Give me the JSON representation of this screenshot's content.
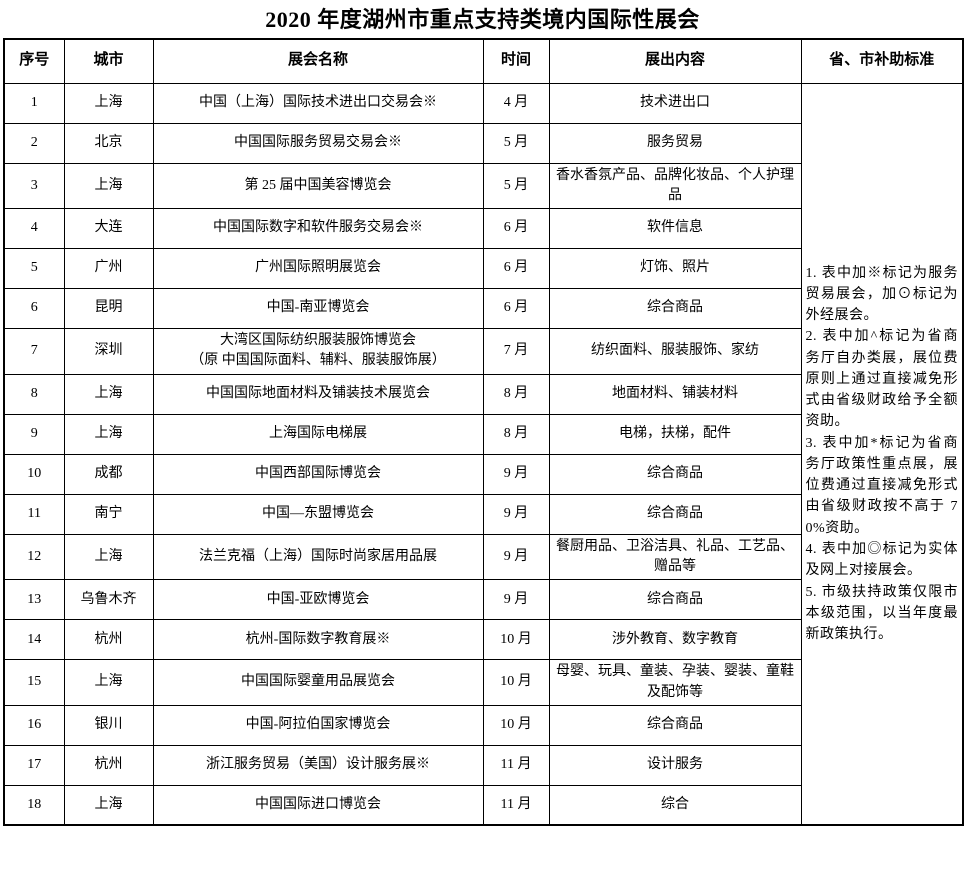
{
  "title": "2020 年度湖州市重点支持类境内国际性展会",
  "table": {
    "headers": [
      "序号",
      "城市",
      "展会名称",
      "时间",
      "展出内容",
      "省、市补助标准"
    ],
    "rows": [
      {
        "no": "1",
        "city": "上海",
        "name": "中国（上海）国际技术进出口交易会※",
        "time": "4 月",
        "content": "技术进出口"
      },
      {
        "no": "2",
        "city": "北京",
        "name": "中国国际服务贸易交易会※",
        "time": "5 月",
        "content": "服务贸易"
      },
      {
        "no": "3",
        "city": "上海",
        "name": "第 25 届中国美容博览会",
        "time": "5 月",
        "content": "香水香氛产品、品牌化妆品、个人护理品"
      },
      {
        "no": "4",
        "city": "大连",
        "name": "中国国际数字和软件服务交易会※",
        "time": "6 月",
        "content": "软件信息"
      },
      {
        "no": "5",
        "city": "广州",
        "name": "广州国际照明展览会",
        "time": "6 月",
        "content": "灯饰、照片"
      },
      {
        "no": "6",
        "city": "昆明",
        "name": "中国-南亚博览会",
        "time": "6 月",
        "content": "综合商品"
      },
      {
        "no": "7",
        "city": "深圳",
        "name": "大湾区国际纺织服装服饰博览会\n（原 中国国际面料、辅料、服装服饰展）",
        "time": "7 月",
        "content": "纺织面料、服装服饰、家纺"
      },
      {
        "no": "8",
        "city": "上海",
        "name": "中国国际地面材料及铺装技术展览会",
        "time": "8 月",
        "content": "地面材料、铺装材料"
      },
      {
        "no": "9",
        "city": "上海",
        "name": "上海国际电梯展",
        "time": "8 月",
        "content": "电梯，扶梯，配件"
      },
      {
        "no": "10",
        "city": "成都",
        "name": "中国西部国际博览会",
        "time": "9 月",
        "content": "综合商品"
      },
      {
        "no": "11",
        "city": "南宁",
        "name": "中国—东盟博览会",
        "time": "9 月",
        "content": "综合商品"
      },
      {
        "no": "12",
        "city": "上海",
        "name": "法兰克福（上海）国际时尚家居用品展",
        "time": "9 月",
        "content": "餐厨用品、卫浴洁具、礼品、工艺品、赠品等"
      },
      {
        "no": "13",
        "city": "乌鲁木齐",
        "name": "中国-亚欧博览会",
        "time": "9 月",
        "content": "综合商品"
      },
      {
        "no": "14",
        "city": "杭州",
        "name": "杭州-国际数字教育展※",
        "time": "10 月",
        "content": "涉外教育、数字教育"
      },
      {
        "no": "15",
        "city": "上海",
        "name": "中国国际婴童用品展览会",
        "time": "10 月",
        "content": "母婴、玩具、童装、孕装、婴装、童鞋及配饰等"
      },
      {
        "no": "16",
        "city": "银川",
        "name": "中国-阿拉伯国家博览会",
        "time": "10 月",
        "content": "综合商品"
      },
      {
        "no": "17",
        "city": "杭州",
        "name": "浙江服务贸易（美国）设计服务展※",
        "time": "11 月",
        "content": "设计服务"
      },
      {
        "no": "18",
        "city": "上海",
        "name": "中国国际进口博览会",
        "time": "11 月",
        "content": "综合"
      }
    ],
    "notes": [
      "1. 表中加※标记为服务贸易展会，加⊙标记为外经展会。",
      "2. 表中加^标记为省商务厅自办类展，展位费原则上通过直接减免形式由省级财政给予全额资助。",
      "3. 表中加*标记为省商务厅政策性重点展，展位费通过直接减免形式由省级财政按不高于 70%资助。",
      "4. 表中加◎标记为实体及网上对接展会。",
      "5. 市级扶持政策仅限市本级范围，以当年度最新政策执行。"
    ]
  },
  "colors": {
    "text": "#000000",
    "border": "#000000",
    "background": "#ffffff"
  }
}
